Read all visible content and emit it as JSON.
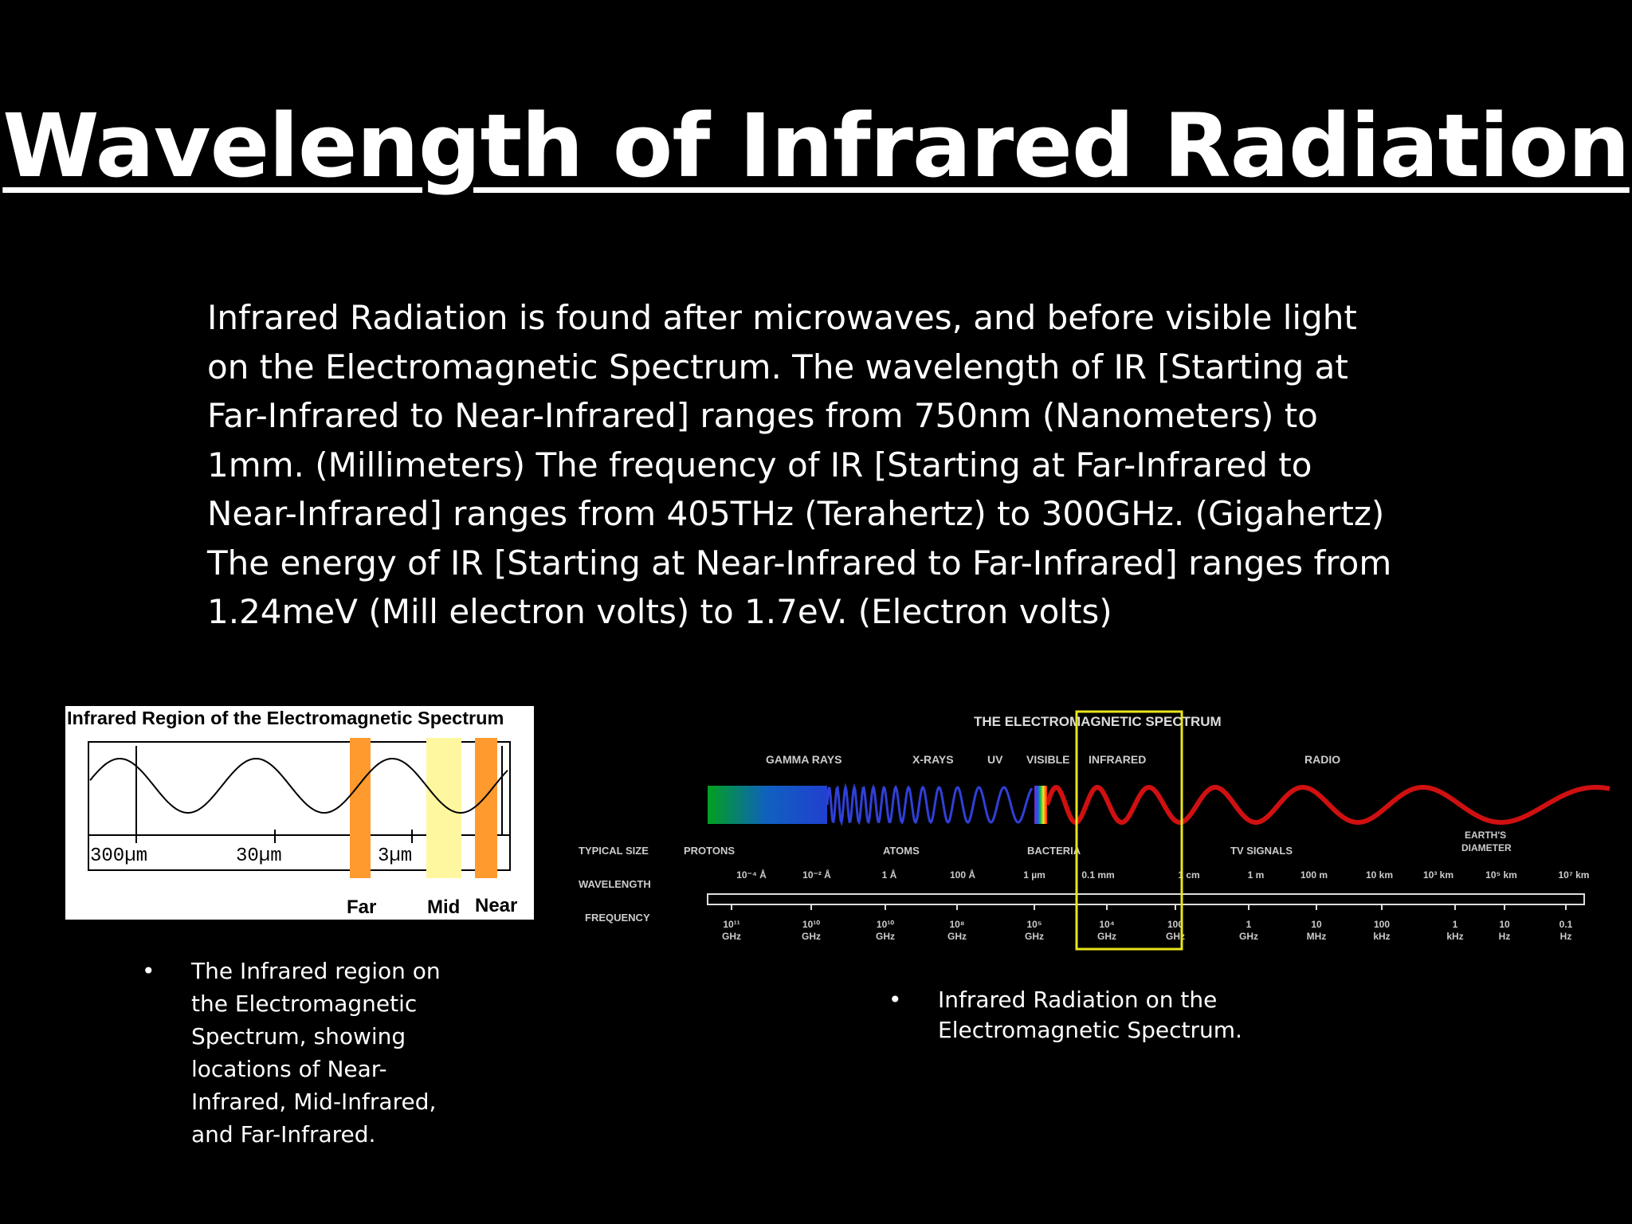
{
  "title": "Wavelength of Infrared Radiation",
  "body_lines": [
    "Infrared Radiation is found after microwaves, and before visible light",
    "on the Electromagnetic Spectrum. The wavelength of IR [Starting at",
    "Far-Infrared to Near-Infrared] ranges from 750nm (Nanometers) to",
    "1mm. (Millimeters) The frequency of IR [Starting at Far-Infrared to",
    "Near-Infrared] ranges from 405THz (Terahertz) to 300GHz. (Gigahertz)",
    "The energy of IR [Starting at Near-Infrared to Far-Infrared] ranges from",
    "1.24meV (Mill electron volts) to 1.7eV. (Electron volts)"
  ],
  "ir_figure": {
    "title": "Infrared Region of the Electromagnetic Spectrum",
    "scale_labels": [
      "300µm",
      "30µm",
      "3µm"
    ],
    "band_labels": [
      "Far",
      "Mid",
      "Near"
    ],
    "colors": {
      "band_orange": "#ff9a2e",
      "band_yellow": "#fff7a0"
    }
  },
  "em_figure": {
    "title": "THE ELECTROMAGNETIC SPECTRUM",
    "band_labels": [
      "GAMMA RAYS",
      "X-RAYS",
      "UV",
      "VISIBLE",
      "INFRARED",
      "RADIO"
    ],
    "row_labels": [
      "TYPICAL SIZE",
      "WAVELENGTH",
      "FREQUENCY"
    ],
    "size_labels": [
      "PROTONS",
      "ATOMS",
      "BACTERIA",
      "TV SIGNALS",
      "EARTH'S",
      "DIAMETER"
    ],
    "wavelength_labels": [
      "10⁻⁴ Å",
      "10⁻² Å",
      "1 Å",
      "100 Å",
      "1 µm",
      "0.1 mm",
      "1 cm",
      "1 m",
      "100 m",
      "10 km",
      "10³ km",
      "10⁵ km",
      "10⁷ km"
    ],
    "frequency_values": [
      "10¹¹",
      "10¹⁰",
      "10¹⁰",
      "10⁸",
      "10⁵",
      "10⁴",
      "100",
      "1",
      "10",
      "100",
      "1",
      "10",
      "0.1"
    ],
    "frequency_units": [
      "GHz",
      "GHz",
      "GHz",
      "GHz",
      "GHz",
      "GHz",
      "GHz",
      "GHz",
      "MHz",
      "kHz",
      "kHz",
      "Hz",
      "Hz"
    ],
    "colors": {
      "highlight": "#e9e51a",
      "wave_red": "#d01010"
    }
  },
  "captions": [
    "The Infrared region on the Electromagnetic Spectrum, showing locations of Near-Infrared, Mid-Infrared, and Far-Infrared.",
    "Infrared Radiation on the Electromagnetic Spectrum."
  ],
  "bullet": "•"
}
